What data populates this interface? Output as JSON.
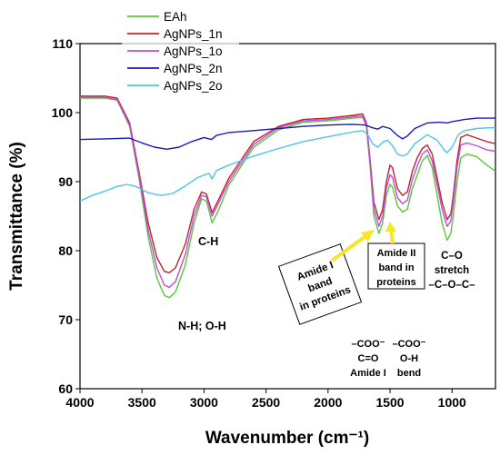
{
  "chart_data": {
    "type": "line",
    "xlabel": "Wavenumber (cm⁻¹)",
    "ylabel": "Transmittance (%)",
    "xlim": [
      4000,
      650
    ],
    "ylim": [
      60,
      110
    ],
    "x_reversed": true,
    "x_ticks": [
      4000,
      3500,
      3000,
      2500,
      2000,
      1500,
      1000
    ],
    "y_ticks": [
      60,
      70,
      80,
      90,
      100,
      110
    ],
    "legend_position": "top-center",
    "series": [
      {
        "name": "EAh",
        "color": "#5ac83a",
        "points": [
          [
            4000,
            102.1
          ],
          [
            3800,
            102.1
          ],
          [
            3700,
            101.8
          ],
          [
            3600,
            98
          ],
          [
            3520,
            90
          ],
          [
            3450,
            82
          ],
          [
            3380,
            76
          ],
          [
            3320,
            73.5
          ],
          [
            3280,
            73.2
          ],
          [
            3230,
            74
          ],
          [
            3150,
            78
          ],
          [
            3080,
            84
          ],
          [
            3020,
            87.5
          ],
          [
            2980,
            87.2
          ],
          [
            2935,
            84
          ],
          [
            2880,
            86
          ],
          [
            2800,
            89.5
          ],
          [
            2600,
            95
          ],
          [
            2400,
            97.5
          ],
          [
            2200,
            98.6
          ],
          [
            2000,
            98.8
          ],
          [
            1800,
            99.2
          ],
          [
            1720,
            99.3
          ],
          [
            1690,
            98
          ],
          [
            1660,
            92
          ],
          [
            1630,
            85
          ],
          [
            1590,
            82.5
          ],
          [
            1560,
            84
          ],
          [
            1530,
            88
          ],
          [
            1500,
            89.6
          ],
          [
            1480,
            89.2
          ],
          [
            1440,
            86.5
          ],
          [
            1400,
            85.6
          ],
          [
            1360,
            86
          ],
          [
            1320,
            89
          ],
          [
            1280,
            91
          ],
          [
            1240,
            93
          ],
          [
            1200,
            93.8
          ],
          [
            1160,
            92
          ],
          [
            1120,
            88
          ],
          [
            1080,
            84
          ],
          [
            1040,
            81.5
          ],
          [
            1010,
            82.5
          ],
          [
            990,
            85
          ],
          [
            960,
            90
          ],
          [
            930,
            93.4
          ],
          [
            880,
            94
          ],
          [
            800,
            93.6
          ],
          [
            720,
            92.4
          ],
          [
            650,
            91.5
          ]
        ]
      },
      {
        "name": "AgNPs_1n",
        "color": "#c0232a",
        "points": [
          [
            4000,
            102.4
          ],
          [
            3800,
            102.4
          ],
          [
            3700,
            102.1
          ],
          [
            3600,
            98.5
          ],
          [
            3520,
            91
          ],
          [
            3450,
            84
          ],
          [
            3380,
            79
          ],
          [
            3320,
            77
          ],
          [
            3280,
            76.8
          ],
          [
            3230,
            77.5
          ],
          [
            3150,
            81
          ],
          [
            3080,
            86
          ],
          [
            3020,
            88.5
          ],
          [
            2980,
            88.2
          ],
          [
            2935,
            85.5
          ],
          [
            2880,
            87.5
          ],
          [
            2800,
            90.5
          ],
          [
            2600,
            95.8
          ],
          [
            2400,
            98
          ],
          [
            2200,
            99
          ],
          [
            2000,
            99.2
          ],
          [
            1800,
            99.6
          ],
          [
            1720,
            99.8
          ],
          [
            1690,
            98.5
          ],
          [
            1660,
            93
          ],
          [
            1630,
            87
          ],
          [
            1590,
            84.5
          ],
          [
            1560,
            86
          ],
          [
            1530,
            90
          ],
          [
            1500,
            92.4
          ],
          [
            1480,
            92
          ],
          [
            1440,
            89
          ],
          [
            1400,
            88
          ],
          [
            1360,
            88.5
          ],
          [
            1320,
            91.5
          ],
          [
            1280,
            93.5
          ],
          [
            1240,
            94.8
          ],
          [
            1200,
            95.3
          ],
          [
            1160,
            94
          ],
          [
            1120,
            90.5
          ],
          [
            1080,
            87
          ],
          [
            1040,
            84.5
          ],
          [
            1010,
            85.3
          ],
          [
            990,
            88
          ],
          [
            960,
            93
          ],
          [
            930,
            96.4
          ],
          [
            880,
            96.8
          ],
          [
            800,
            96.3
          ],
          [
            720,
            95.8
          ],
          [
            650,
            95.5
          ]
        ]
      },
      {
        "name": "AgNPs_1o",
        "color": "#c24be0",
        "points": [
          [
            4000,
            102.2
          ],
          [
            3800,
            102.2
          ],
          [
            3700,
            101.9
          ],
          [
            3600,
            98.2
          ],
          [
            3520,
            90.5
          ],
          [
            3450,
            83
          ],
          [
            3380,
            77.5
          ],
          [
            3320,
            75
          ],
          [
            3280,
            74.7
          ],
          [
            3230,
            75.5
          ],
          [
            3150,
            79.5
          ],
          [
            3080,
            85
          ],
          [
            3020,
            88
          ],
          [
            2980,
            87.8
          ],
          [
            2935,
            85
          ],
          [
            2880,
            87
          ],
          [
            2800,
            90
          ],
          [
            2600,
            95.4
          ],
          [
            2400,
            97.8
          ],
          [
            2200,
            98.8
          ],
          [
            2000,
            99
          ],
          [
            1800,
            99.4
          ],
          [
            1720,
            99.5
          ],
          [
            1690,
            98.2
          ],
          [
            1660,
            92.5
          ],
          [
            1630,
            86
          ],
          [
            1590,
            83.5
          ],
          [
            1560,
            85
          ],
          [
            1530,
            89
          ],
          [
            1500,
            91
          ],
          [
            1480,
            90.6
          ],
          [
            1440,
            87.7
          ],
          [
            1400,
            86.8
          ],
          [
            1360,
            87.3
          ],
          [
            1320,
            90.3
          ],
          [
            1280,
            92.3
          ],
          [
            1240,
            94
          ],
          [
            1200,
            94.6
          ],
          [
            1160,
            93
          ],
          [
            1120,
            89.5
          ],
          [
            1080,
            86
          ],
          [
            1040,
            83.5
          ],
          [
            1010,
            84.3
          ],
          [
            990,
            87
          ],
          [
            960,
            92
          ],
          [
            930,
            95.3
          ],
          [
            880,
            95.6
          ],
          [
            800,
            95.2
          ],
          [
            720,
            94.6
          ],
          [
            650,
            94.4
          ]
        ]
      },
      {
        "name": "AgNPs_2n",
        "color": "#1a1ab8",
        "points": [
          [
            4000,
            96.1
          ],
          [
            3800,
            96.2
          ],
          [
            3600,
            96.3
          ],
          [
            3500,
            95.6
          ],
          [
            3400,
            95
          ],
          [
            3300,
            94.7
          ],
          [
            3200,
            95
          ],
          [
            3100,
            95.8
          ],
          [
            3000,
            96.4
          ],
          [
            2940,
            96.1
          ],
          [
            2900,
            96.7
          ],
          [
            2800,
            97.1
          ],
          [
            2600,
            97.4
          ],
          [
            2400,
            97.7
          ],
          [
            2200,
            98
          ],
          [
            2000,
            98.2
          ],
          [
            1800,
            98.3
          ],
          [
            1700,
            98.2
          ],
          [
            1640,
            97.8
          ],
          [
            1600,
            97.6
          ],
          [
            1560,
            98
          ],
          [
            1500,
            97.7
          ],
          [
            1440,
            96.7
          ],
          [
            1400,
            96.2
          ],
          [
            1360,
            96.6
          ],
          [
            1300,
            97.7
          ],
          [
            1200,
            98.5
          ],
          [
            1100,
            98.6
          ],
          [
            1040,
            98.5
          ],
          [
            1000,
            98.7
          ],
          [
            900,
            99
          ],
          [
            800,
            99.2
          ],
          [
            650,
            99.2
          ]
        ]
      },
      {
        "name": "AgNPs_2o",
        "color": "#4ec3eb",
        "points": [
          [
            4000,
            87.2
          ],
          [
            3900,
            88
          ],
          [
            3800,
            88.6
          ],
          [
            3700,
            89.3
          ],
          [
            3620,
            89.6
          ],
          [
            3550,
            89.3
          ],
          [
            3450,
            88.4
          ],
          [
            3350,
            88
          ],
          [
            3250,
            88.3
          ],
          [
            3150,
            89.4
          ],
          [
            3050,
            90.6
          ],
          [
            2960,
            91.2
          ],
          [
            2935,
            90.4
          ],
          [
            2900,
            91.6
          ],
          [
            2800,
            92.4
          ],
          [
            2600,
            93.7
          ],
          [
            2400,
            94.8
          ],
          [
            2200,
            95.8
          ],
          [
            2000,
            96.5
          ],
          [
            1800,
            97.2
          ],
          [
            1720,
            97.4
          ],
          [
            1680,
            96.8
          ],
          [
            1640,
            95.5
          ],
          [
            1600,
            95
          ],
          [
            1560,
            95.7
          ],
          [
            1520,
            96
          ],
          [
            1480,
            95.2
          ],
          [
            1440,
            94
          ],
          [
            1400,
            93.7
          ],
          [
            1360,
            94
          ],
          [
            1300,
            95.5
          ],
          [
            1200,
            96.8
          ],
          [
            1120,
            96
          ],
          [
            1060,
            94.5
          ],
          [
            1040,
            94.2
          ],
          [
            1000,
            95
          ],
          [
            950,
            96.8
          ],
          [
            900,
            97.4
          ],
          [
            800,
            97.7
          ],
          [
            700,
            97.8
          ],
          [
            650,
            97.8
          ]
        ]
      }
    ],
    "annotations": {
      "nh_oh": "N-H; O-H",
      "ch": "C-H",
      "amide1_box": [
        "Amide I",
        "band",
        "in proteins"
      ],
      "amide2_box": [
        "Amide II",
        "band in",
        "proteins"
      ],
      "co_stretch": [
        "C–O",
        "stretch",
        "–C–O–C–"
      ],
      "coo_amide1": [
        "–COO⁻",
        "C=O",
        "Amide I"
      ],
      "coo_oh": [
        "–COO⁻",
        "O-H",
        "bend"
      ]
    }
  }
}
